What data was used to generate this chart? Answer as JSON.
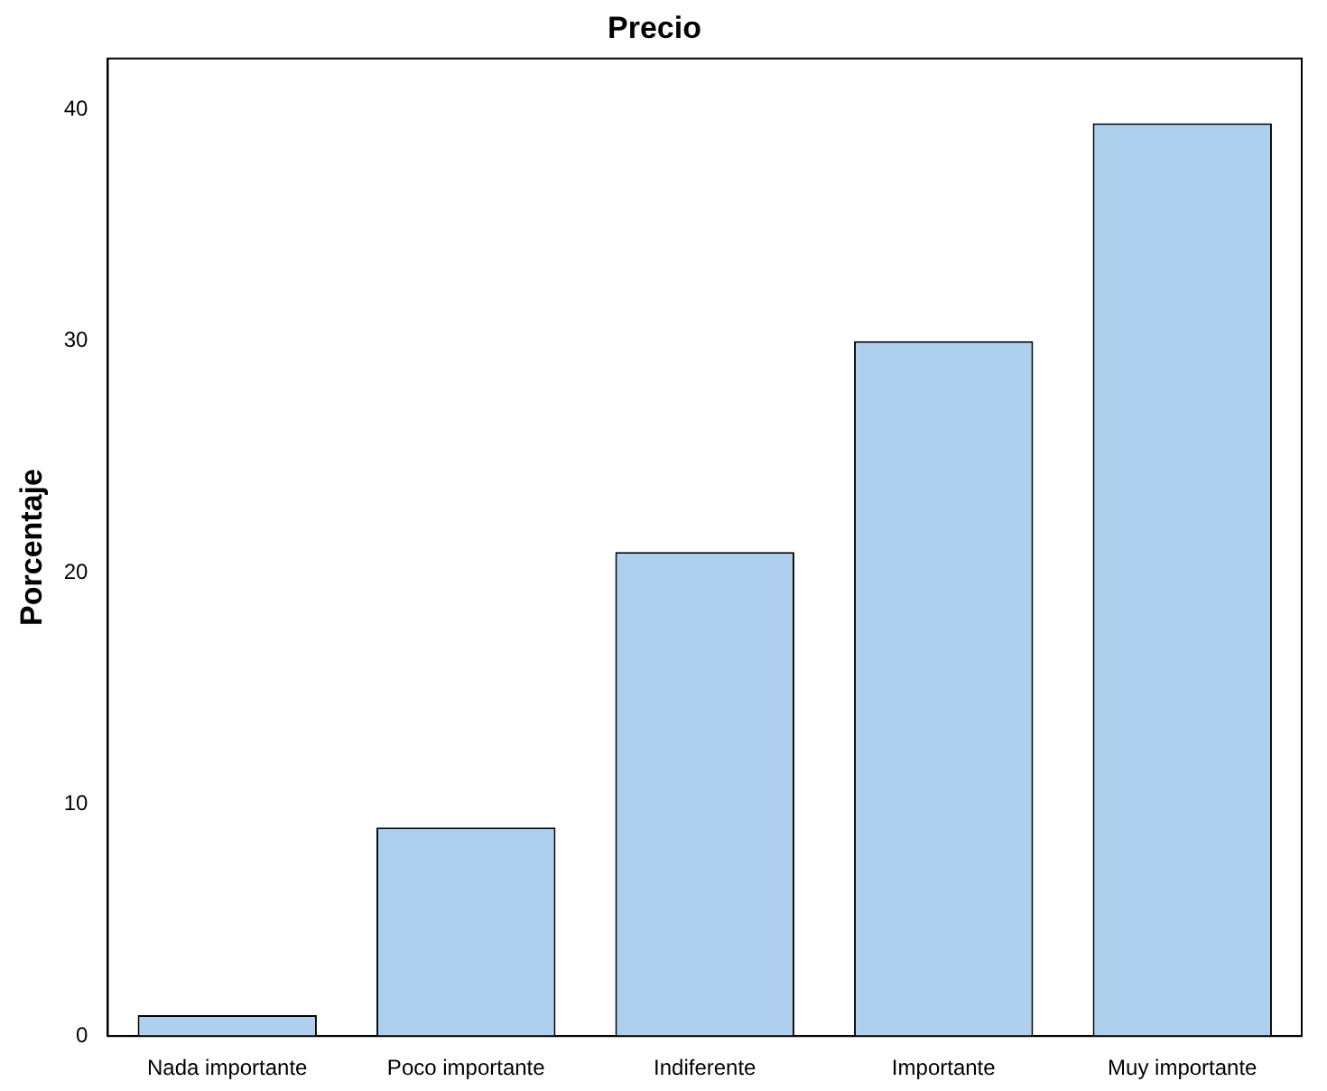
{
  "chart_data": {
    "type": "bar",
    "title": "Precio",
    "ylabel": "Porcentaje",
    "categories": [
      "Nada importante",
      "Poco importante",
      "Indiferente",
      "Importante",
      "Muy importante"
    ],
    "values": [
      0.9,
      9.0,
      20.9,
      30.0,
      39.4
    ],
    "color": "#aed0ee",
    "ylim": [
      0,
      42.2
    ],
    "yticks": [
      0,
      10,
      20,
      30,
      40
    ],
    "grid": false,
    "legend": false
  }
}
